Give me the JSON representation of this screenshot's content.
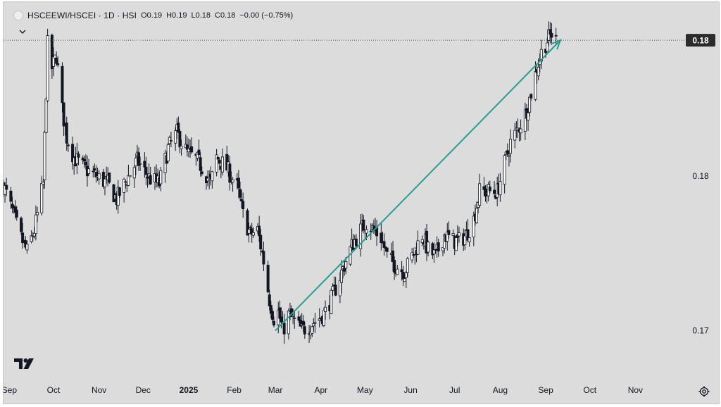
{
  "legend": {
    "symbol": "HSCEEWI/HSCEI · 1D · HSI",
    "open_label": "O",
    "open": "0.19",
    "high_label": "H",
    "high": "0.19",
    "low_label": "L",
    "low": "0.18",
    "close_label": "C",
    "close": "0.18",
    "change": "−0.00 (−0.75%)"
  },
  "icons": {
    "collapse": "chevron-down-icon",
    "logo": "tradingview-logo-icon",
    "settings": "gear-icon"
  },
  "colors": {
    "background": "#dcdcdc",
    "candle": "#131722",
    "trendline": "#2a9d8f",
    "price_label_bg": "#2b2b2b",
    "price_label_text": "#ffffff",
    "axis_text": "#131722"
  },
  "chart_data": {
    "type": "candlestick",
    "x_axis_labels": [
      "Sep",
      "Oct",
      "Nov",
      "Dec",
      "2025",
      "Feb",
      "Mar",
      "Apr",
      "May",
      "Jun",
      "Jul",
      "Aug",
      "Sep",
      "Oct",
      "Nov"
    ],
    "y_axis_ticks": [
      "0.18",
      "0.17"
    ],
    "y_tick_values": [
      0.18,
      0.17
    ],
    "last_price_label": "0.18",
    "last_price": 0.1888,
    "ylim": [
      0.1671,
      0.1899
    ],
    "xlim": [
      "2024-08-28",
      "2025-12-01"
    ],
    "trendline": {
      "start": {
        "date": "2025-03-01",
        "value": 0.17
      },
      "end": {
        "date": "2025-09-11",
        "value": 0.1888
      },
      "arrow": true
    },
    "path": [
      [
        "2024-08-28",
        0.1794
      ],
      [
        "2024-09-03",
        0.1777
      ],
      [
        "2024-09-09",
        0.176
      ],
      [
        "2024-09-13",
        0.1751
      ],
      [
        "2024-09-18",
        0.1765
      ],
      [
        "2024-09-24",
        0.1795
      ],
      [
        "2024-09-27",
        0.1885
      ],
      [
        "2024-09-30",
        0.187
      ],
      [
        "2024-10-03",
        0.1878
      ],
      [
        "2024-10-07",
        0.1843
      ],
      [
        "2024-10-10",
        0.1825
      ],
      [
        "2024-10-15",
        0.1812
      ],
      [
        "2024-10-22",
        0.1805
      ],
      [
        "2024-10-30",
        0.18
      ],
      [
        "2024-11-07",
        0.1795
      ],
      [
        "2024-11-13",
        0.1785
      ],
      [
        "2024-11-20",
        0.1798
      ],
      [
        "2024-11-27",
        0.181
      ],
      [
        "2024-12-05",
        0.1799
      ],
      [
        "2024-12-12",
        0.1795
      ],
      [
        "2024-12-18",
        0.1818
      ],
      [
        "2024-12-24",
        0.1828
      ],
      [
        "2024-12-31",
        0.1815
      ],
      [
        "2025-01-07",
        0.181
      ],
      [
        "2025-01-12",
        0.1803
      ],
      [
        "2025-01-16",
        0.1795
      ],
      [
        "2025-01-20",
        0.1812
      ],
      [
        "2025-01-27",
        0.1805
      ],
      [
        "2025-02-03",
        0.1793
      ],
      [
        "2025-02-07",
        0.1775
      ],
      [
        "2025-02-12",
        0.1762
      ],
      [
        "2025-02-17",
        0.1765
      ],
      [
        "2025-02-21",
        0.1745
      ],
      [
        "2025-02-25",
        0.172
      ],
      [
        "2025-02-28",
        0.1708
      ],
      [
        "2025-03-03",
        0.1712
      ],
      [
        "2025-03-06",
        0.17
      ],
      [
        "2025-03-10",
        0.171
      ],
      [
        "2025-03-14",
        0.1706
      ],
      [
        "2025-03-19",
        0.17
      ],
      [
        "2025-03-25",
        0.1704
      ],
      [
        "2025-03-31",
        0.1708
      ],
      [
        "2025-04-04",
        0.1712
      ],
      [
        "2025-04-10",
        0.1725
      ],
      [
        "2025-04-16",
        0.174
      ],
      [
        "2025-04-22",
        0.1755
      ],
      [
        "2025-04-28",
        0.1765
      ],
      [
        "2025-05-02",
        0.177
      ],
      [
        "2025-05-07",
        0.1765
      ],
      [
        "2025-05-12",
        0.176
      ],
      [
        "2025-05-16",
        0.1748
      ],
      [
        "2025-05-22",
        0.1742
      ],
      [
        "2025-05-28",
        0.1738
      ],
      [
        "2025-06-03",
        0.175
      ],
      [
        "2025-06-09",
        0.1762
      ],
      [
        "2025-06-13",
        0.1752
      ],
      [
        "2025-06-18",
        0.1748
      ],
      [
        "2025-06-24",
        0.1762
      ],
      [
        "2025-06-30",
        0.1758
      ],
      [
        "2025-07-04",
        0.1758
      ],
      [
        "2025-07-09",
        0.1762
      ],
      [
        "2025-07-14",
        0.1772
      ],
      [
        "2025-07-18",
        0.179
      ],
      [
        "2025-07-24",
        0.179
      ],
      [
        "2025-07-30",
        0.179
      ],
      [
        "2025-08-04",
        0.1808
      ],
      [
        "2025-08-08",
        0.1822
      ],
      [
        "2025-08-13",
        0.183
      ],
      [
        "2025-08-18",
        0.184
      ],
      [
        "2025-08-21",
        0.185
      ],
      [
        "2025-08-26",
        0.187
      ],
      [
        "2025-08-29",
        0.188
      ],
      [
        "2025-09-02",
        0.1888
      ],
      [
        "2025-09-05",
        0.1892
      ],
      [
        "2025-09-08",
        0.1888
      ]
    ]
  }
}
